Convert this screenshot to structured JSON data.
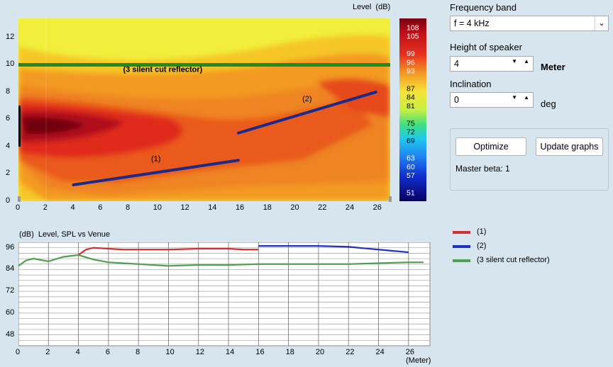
{
  "heatmap": {
    "level_label": "Level",
    "level_unit": "(dB)",
    "x_ticks": [
      "0",
      "2",
      "4",
      "6",
      "8",
      "10",
      "12",
      "14",
      "16",
      "18",
      "20",
      "22",
      "24",
      "26"
    ],
    "y_ticks": [
      "0",
      "2",
      "4",
      "6",
      "8",
      "10",
      "12"
    ],
    "colorbar_labels": [
      "108",
      "105",
      "99",
      "96",
      "93",
      "87",
      "84",
      "81",
      "75",
      "72",
      "69",
      "63",
      "60",
      "57",
      "51"
    ],
    "lines": [
      {
        "label": "(1)",
        "x": [
          4,
          16
        ],
        "y": [
          1.2,
          3.0
        ],
        "color": "#1c2a8a"
      },
      {
        "label": "(2)",
        "x": [
          16,
          26
        ],
        "y": [
          5.0,
          8.0
        ],
        "color": "#1c2a8a"
      },
      {
        "label": "(3 silent cut reflector)",
        "x": [
          0,
          27
        ],
        "y": [
          10,
          10
        ],
        "color": "#1e8a2a"
      }
    ],
    "speaker": {
      "x": 0,
      "y": [
        4,
        7
      ]
    }
  },
  "chart_data": {
    "type": "line",
    "title": "Level, SPL vs Venue",
    "ylabel": "(dB)",
    "xlabel": "(Meter)",
    "xlim": [
      0,
      27
    ],
    "ylim": [
      42,
      99
    ],
    "y_ticks": [
      48,
      60,
      72,
      84,
      96
    ],
    "x_ticks": [
      0,
      2,
      4,
      6,
      8,
      10,
      12,
      14,
      16,
      18,
      20,
      22,
      24,
      26
    ],
    "series": [
      {
        "name": "(1)",
        "color": "#d03030",
        "x": [
          4,
          4.5,
          5,
          6,
          7,
          8,
          10,
          12,
          14,
          15,
          16
        ],
        "y": [
          92,
          95,
          96,
          95.5,
          95,
          95,
          95,
          95.5,
          95.5,
          95,
          95
        ]
      },
      {
        "name": "(2)",
        "color": "#2030c0",
        "x": [
          16,
          18,
          20,
          22,
          24,
          26
        ],
        "y": [
          97,
          97,
          97,
          96.5,
          95,
          93.5
        ]
      },
      {
        "name": "(3 silent cut reflector)",
        "color": "#50a050",
        "x": [
          0,
          0.5,
          1,
          2,
          3,
          4,
          5,
          6,
          8,
          10,
          12,
          14,
          16,
          18,
          20,
          22,
          24,
          26,
          27
        ],
        "y": [
          86,
          89,
          90,
          88.5,
          91,
          92,
          89.5,
          88,
          87,
          86,
          86.5,
          86.5,
          87,
          87,
          87,
          87,
          87.5,
          88,
          88
        ]
      }
    ]
  },
  "controls": {
    "frequency_label": "Frequency band",
    "frequency_value": "f = 4 kHz",
    "height_label": "Height of speaker",
    "height_value": "4",
    "height_unit": "Meter",
    "inclination_label": "Inclination",
    "inclination_value": "0",
    "inclination_unit": "deg",
    "optimize_label": "Optimize",
    "update_label": "Update graphs",
    "master_beta_label": "Master beta:",
    "master_beta_value": "1"
  }
}
